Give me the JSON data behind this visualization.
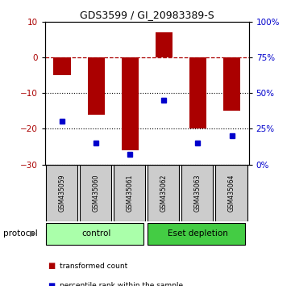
{
  "title": "GDS3599 / GI_20983389-S",
  "samples": [
    "GSM435059",
    "GSM435060",
    "GSM435061",
    "GSM435062",
    "GSM435063",
    "GSM435064"
  ],
  "red_bars": [
    -5.0,
    -16.0,
    -26.0,
    7.0,
    -20.0,
    -15.0
  ],
  "blue_squares_pct": [
    30,
    15,
    7,
    45,
    15,
    20
  ],
  "ylim_left": [
    -30,
    10
  ],
  "ylim_right": [
    0,
    100
  ],
  "y_ticks_left": [
    10,
    0,
    -10,
    -20,
    -30
  ],
  "y_ticks_right": [
    100,
    75,
    50,
    25,
    0
  ],
  "hlines_dotted": [
    -10,
    -20,
    -30
  ],
  "hline_dashed": 0,
  "bar_color": "#aa0000",
  "square_color": "#0000cc",
  "protocol_groups": [
    {
      "label": "control",
      "start": 0,
      "end": 3,
      "color": "#aaffaa"
    },
    {
      "label": "Eset depletion",
      "start": 3,
      "end": 6,
      "color": "#44cc44"
    }
  ],
  "protocol_label": "protocol",
  "legend_bar_label": "transformed count",
  "legend_square_label": "percentile rank within the sample",
  "bg_color": "#ffffff",
  "plot_bg": "#ffffff",
  "header_bg": "#cccccc"
}
